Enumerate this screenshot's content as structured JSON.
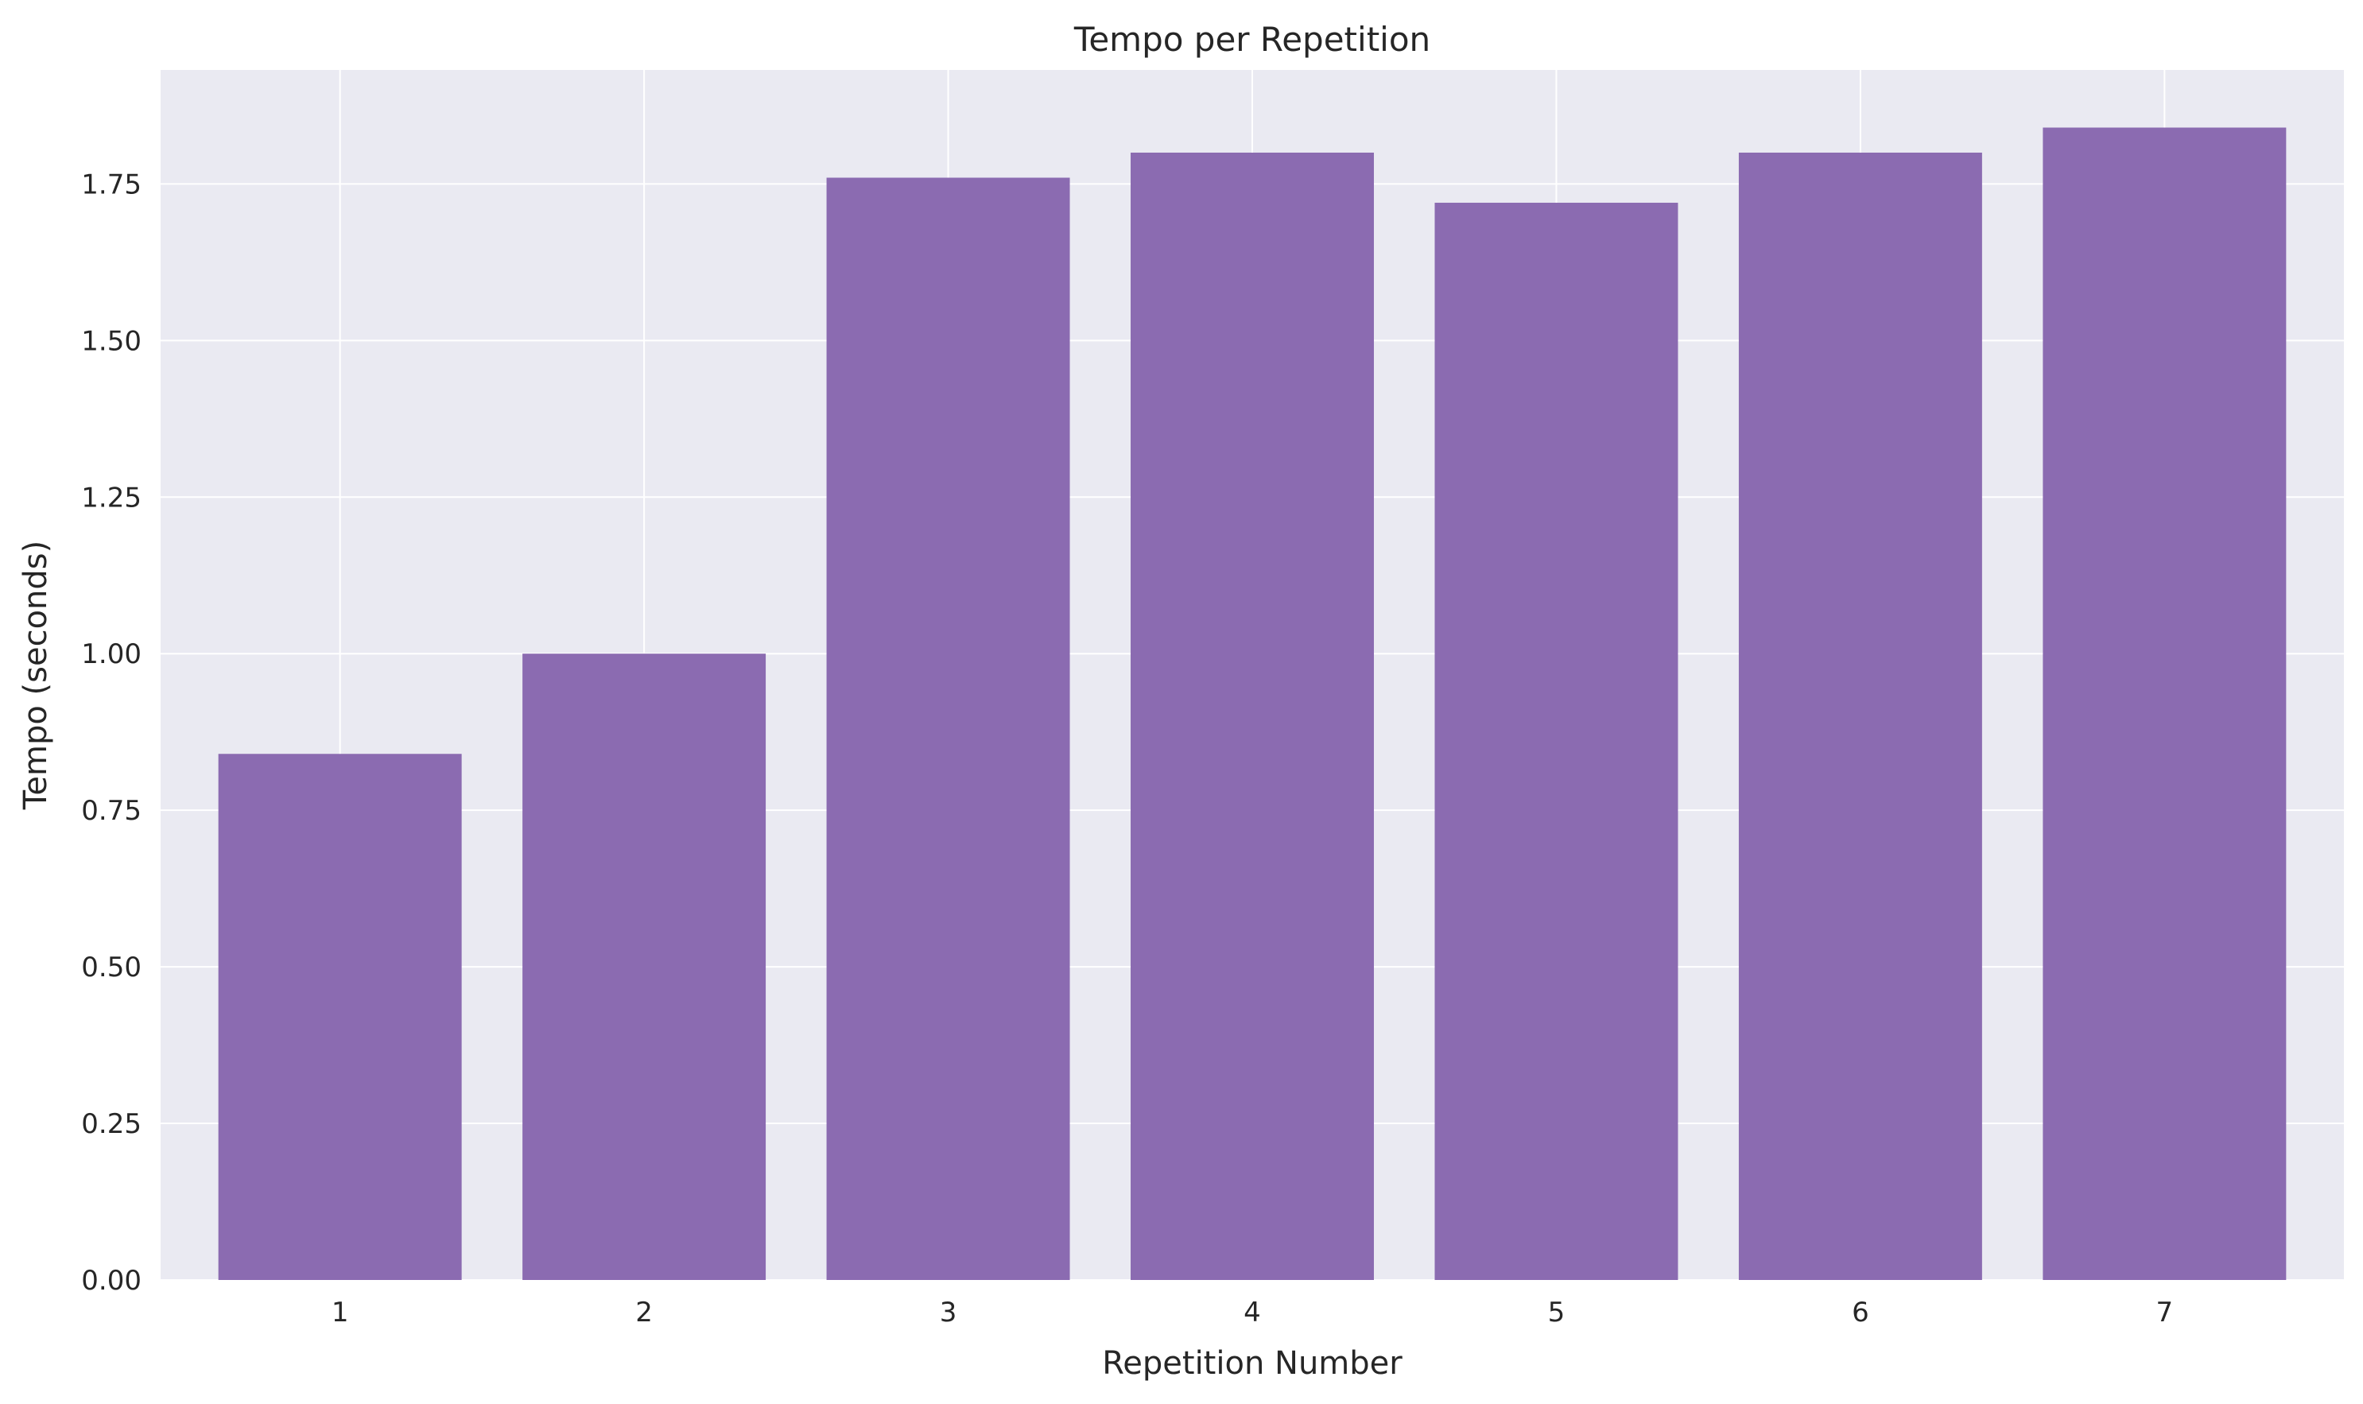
{
  "chart_data": {
    "type": "bar",
    "title": "Tempo per Repetition",
    "xlabel": "Repetition Number",
    "ylabel": "Tempo (seconds)",
    "categories": [
      "1",
      "2",
      "3",
      "4",
      "5",
      "6",
      "7"
    ],
    "values": [
      0.84,
      1.0,
      1.76,
      1.8,
      1.72,
      1.8,
      1.84
    ],
    "ylim": [
      0,
      1.932
    ],
    "yticks": [
      "0.00",
      "0.25",
      "0.50",
      "0.75",
      "1.00",
      "1.25",
      "1.50",
      "1.75"
    ],
    "grid": true,
    "legend": "none",
    "colors": {
      "bar": "#8b6bb1",
      "plot_background": "#eaeaf2",
      "grid": "#ffffff"
    }
  }
}
